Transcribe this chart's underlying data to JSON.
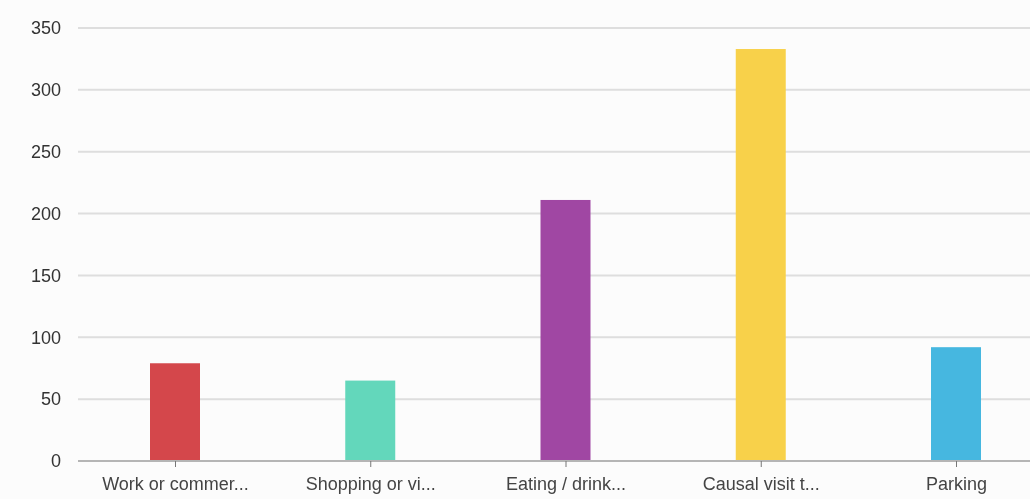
{
  "chart_data": {
    "type": "bar",
    "categories": [
      "Work or commer...",
      "Shopping or vi...",
      "Eating / drink...",
      "Causal visit t...",
      "Parking"
    ],
    "values": [
      79,
      65,
      211,
      333,
      92
    ],
    "colors": [
      "#d4474b",
      "#63d7bb",
      "#a047a3",
      "#f8d14a",
      "#46b7e0"
    ],
    "ylim": [
      0,
      350
    ],
    "yticks": [
      0,
      50,
      100,
      150,
      200,
      250,
      300,
      350
    ],
    "grid": "y"
  }
}
